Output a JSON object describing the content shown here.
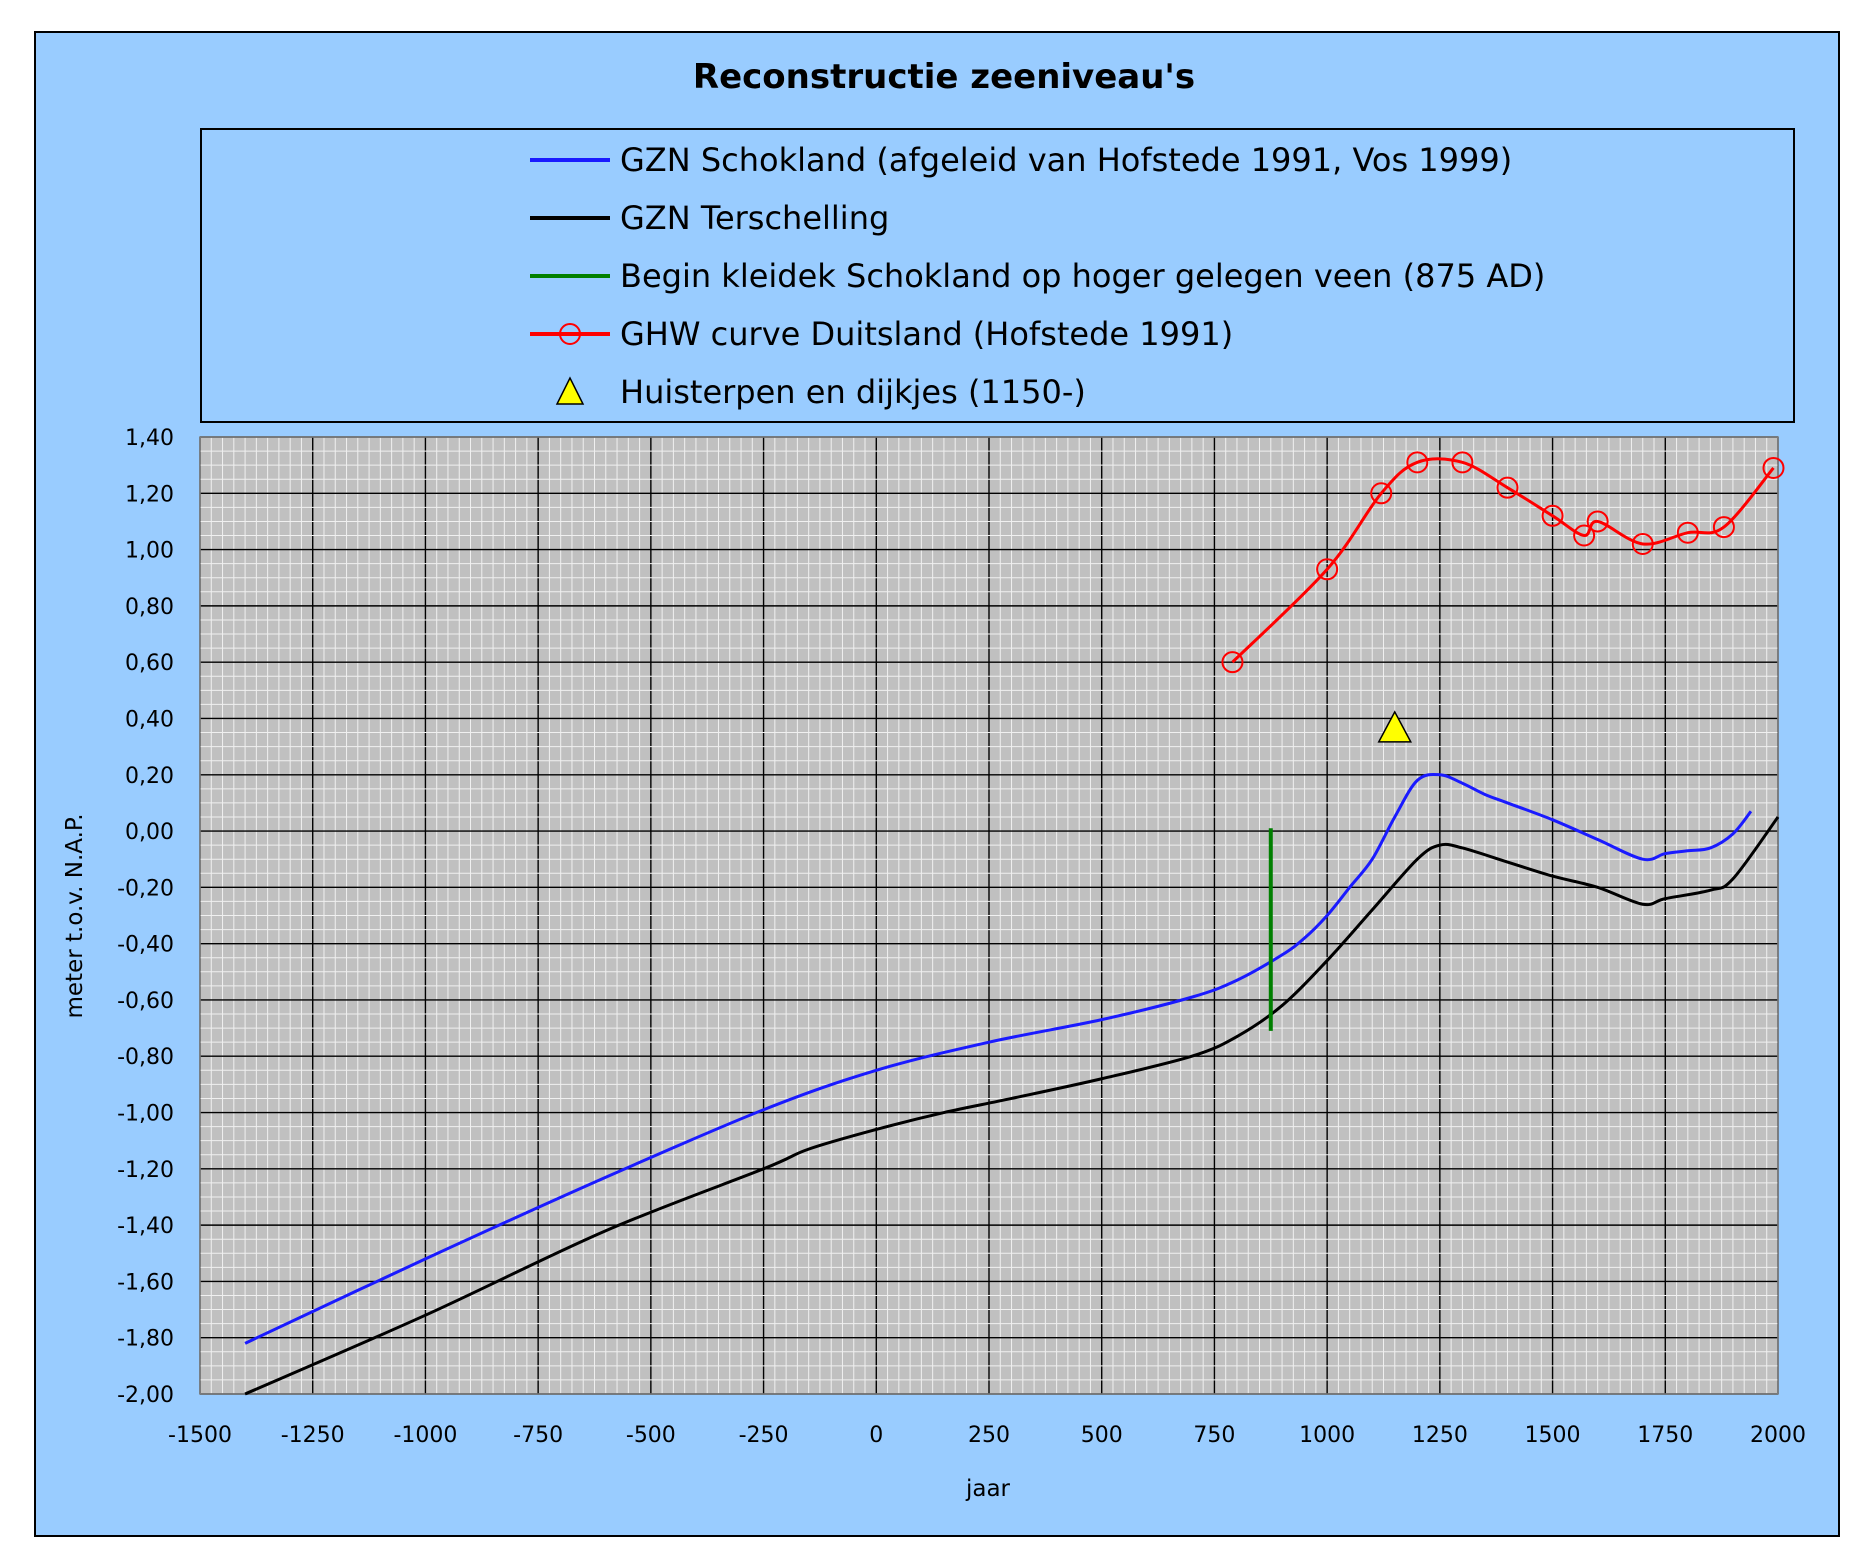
{
  "chart_data": {
    "type": "line",
    "title": "Reconstructie zeeniveau's",
    "xlabel": "jaar",
    "ylabel": "meter t.o.v. N.A.P.",
    "xlim": [
      -1500,
      2000
    ],
    "ylim": [
      -2.0,
      1.4
    ],
    "x_ticks": [
      "-1500",
      "-1250",
      "-1000",
      "-750",
      "-500",
      "-250",
      "0",
      "250",
      "500",
      "750",
      "1000",
      "1250",
      "1500",
      "1750",
      "2000"
    ],
    "y_ticks": [
      "1,40",
      "1,20",
      "1,00",
      "0,80",
      "0,60",
      "0,40",
      "0,20",
      "0,00",
      "-0,20",
      "-0,40",
      "-0,60",
      "-0,80",
      "-1,00",
      "-1,20",
      "-1,40",
      "-1,60",
      "-1,80",
      "-2,00"
    ],
    "grid": true,
    "legend_position": "top",
    "plot_background": "#c0c0c0",
    "series": [
      {
        "name": "GZN Schokland (afgeleid van Hofstede 1991, Vos 1999)",
        "color": "#1a1aff",
        "marker": "none",
        "points": [
          [
            -1400,
            -1.82
          ],
          [
            -1000,
            -1.52
          ],
          [
            -600,
            -1.23
          ],
          [
            -250,
            -0.99
          ],
          [
            0,
            -0.85
          ],
          [
            250,
            -0.75
          ],
          [
            500,
            -0.67
          ],
          [
            700,
            -0.59
          ],
          [
            800,
            -0.53
          ],
          [
            900,
            -0.44
          ],
          [
            950,
            -0.38
          ],
          [
            1000,
            -0.3
          ],
          [
            1050,
            -0.2
          ],
          [
            1100,
            -0.1
          ],
          [
            1150,
            0.05
          ],
          [
            1200,
            0.18
          ],
          [
            1250,
            0.2
          ],
          [
            1300,
            0.17
          ],
          [
            1350,
            0.13
          ],
          [
            1400,
            0.1
          ],
          [
            1500,
            0.04
          ],
          [
            1600,
            -0.03
          ],
          [
            1700,
            -0.1
          ],
          [
            1750,
            -0.08
          ],
          [
            1800,
            -0.07
          ],
          [
            1850,
            -0.06
          ],
          [
            1900,
            -0.01
          ],
          [
            1940,
            0.07
          ]
        ]
      },
      {
        "name": "GZN Terschelling",
        "color": "#000000",
        "marker": "none",
        "points": [
          [
            -1400,
            -2.0
          ],
          [
            -1000,
            -1.72
          ],
          [
            -600,
            -1.42
          ],
          [
            -250,
            -1.2
          ],
          [
            -150,
            -1.13
          ],
          [
            0,
            -1.06
          ],
          [
            150,
            -1.0
          ],
          [
            300,
            -0.95
          ],
          [
            500,
            -0.88
          ],
          [
            700,
            -0.8
          ],
          [
            800,
            -0.73
          ],
          [
            900,
            -0.62
          ],
          [
            1000,
            -0.46
          ],
          [
            1100,
            -0.28
          ],
          [
            1200,
            -0.1
          ],
          [
            1250,
            -0.05
          ],
          [
            1300,
            -0.06
          ],
          [
            1400,
            -0.11
          ],
          [
            1500,
            -0.16
          ],
          [
            1600,
            -0.2
          ],
          [
            1700,
            -0.26
          ],
          [
            1750,
            -0.24
          ],
          [
            1850,
            -0.21
          ],
          [
            1900,
            -0.17
          ],
          [
            2000,
            0.05
          ]
        ]
      },
      {
        "name": "Begin kleidek Schokland op hoger gelegen veen (875 AD)",
        "color": "#007f00",
        "marker": "none",
        "points": [
          [
            875,
            0.01
          ],
          [
            875,
            -0.71
          ]
        ]
      },
      {
        "name": "GHW curve Duitsland (Hofstede 1991)",
        "color": "#ff0000",
        "marker": "circle",
        "points": [
          [
            790,
            0.6
          ],
          [
            1000,
            0.93
          ],
          [
            1120,
            1.2
          ],
          [
            1200,
            1.31
          ],
          [
            1300,
            1.31
          ],
          [
            1400,
            1.22
          ],
          [
            1500,
            1.12
          ],
          [
            1570,
            1.05
          ],
          [
            1600,
            1.1
          ],
          [
            1700,
            1.02
          ],
          [
            1800,
            1.06
          ],
          [
            1880,
            1.08
          ],
          [
            1990,
            1.29
          ]
        ]
      },
      {
        "name": "Huisterpen en dijkjes (1150-)",
        "color": "#ffff00",
        "marker": "triangle",
        "points": [
          [
            1150,
            0.37
          ]
        ]
      }
    ]
  }
}
